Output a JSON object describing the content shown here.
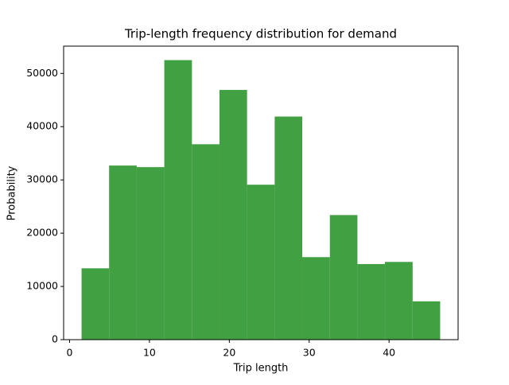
{
  "chart_data": {
    "type": "histogram",
    "title": "Trip-length frequency distribution for demand",
    "xlabel": "Trip length",
    "ylabel": "Probability",
    "bins": [
      1.5,
      4.95,
      8.41,
      11.86,
      15.32,
      18.77,
      22.22,
      25.68,
      29.13,
      32.59,
      36.04,
      39.49,
      42.95,
      46.4
    ],
    "values": [
      13400,
      32700,
      32400,
      52500,
      36700,
      46900,
      29100,
      41900,
      15500,
      23400,
      14200,
      14600,
      7200
    ],
    "color": "#41a041",
    "xlim": [
      -0.745,
      48.645
    ],
    "xticks": [
      0,
      10,
      20,
      30,
      40
    ],
    "ylim": [
      0,
      55125
    ],
    "yticks": [
      0,
      10000,
      20000,
      30000,
      40000,
      50000
    ]
  }
}
